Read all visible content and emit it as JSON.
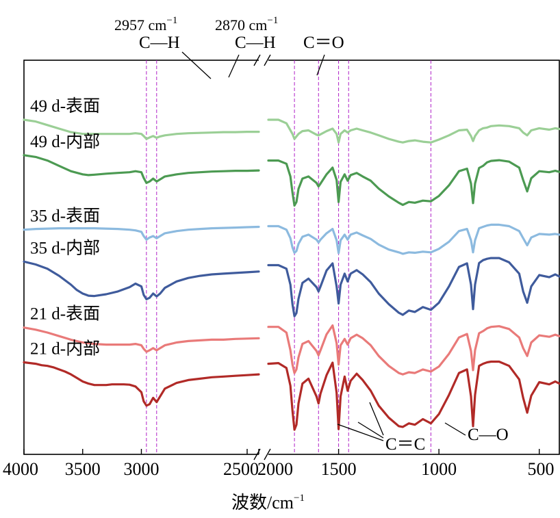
{
  "chart_data": {
    "type": "line",
    "title": "",
    "xlabel": "波数/cm",
    "xlabel_exp": "−1",
    "ylabel": "",
    "x_ticks": [
      "4000",
      "3500",
      "3000",
      "2500",
      "2000",
      "1500",
      "1000",
      "500"
    ],
    "x_segments": [
      [
        4000,
        2000
      ],
      [
        1850,
        400
      ]
    ],
    "grid": false,
    "series": [
      {
        "name": "49 d-表面",
        "color": "#9bcf96",
        "x": [
          4000,
          3900,
          3800,
          3700,
          3600,
          3500,
          3400,
          3300,
          3200,
          3100,
          3050,
          3000,
          2980,
          2957,
          2930,
          2900,
          2870,
          2840,
          2800,
          2700,
          2600,
          2500,
          2400,
          2300,
          2200,
          2100,
          2000,
          1850,
          1800,
          1760,
          1730,
          1720,
          1700,
          1680,
          1650,
          1610,
          1600,
          1590,
          1560,
          1530,
          1510,
          1500,
          1490,
          1470,
          1455,
          1440,
          1410,
          1380,
          1340,
          1300,
          1250,
          1200,
          1180,
          1150,
          1120,
          1080,
          1040,
          1000,
          950,
          900,
          860,
          840,
          830,
          820,
          800,
          780,
          760,
          740,
          700,
          650,
          600,
          580,
          560,
          540,
          500,
          450,
          420,
          400
        ],
        "y": [
          100,
          99.5,
          98.5,
          97.5,
          96.5,
          96,
          96,
          96,
          96,
          96,
          96.2,
          96,
          95.4,
          94.6,
          95,
          95.4,
          94.9,
          95.3,
          95.6,
          96,
          96.2,
          96.3,
          96.4,
          96.5,
          96.5,
          96.6,
          96.6,
          100,
          100,
          99,
          96,
          94.6,
          96,
          96.8,
          97,
          95.8,
          95.6,
          95.9,
          96.8,
          97.5,
          96,
          93.6,
          96,
          97,
          96.4,
          97,
          97.5,
          97,
          96.4,
          95.6,
          94.6,
          93.8,
          93.6,
          94,
          94.2,
          93.8,
          93.6,
          94.4,
          95.6,
          97,
          97.2,
          95.4,
          94,
          95.4,
          97,
          97.6,
          97.8,
          98.2,
          98.4,
          98.2,
          97.6,
          96.4,
          95.6,
          97,
          97.6,
          97.2,
          97.6,
          97.4
        ]
      },
      {
        "name": "49 d-内部",
        "color": "#4c9a52",
        "x": [
          4000,
          3900,
          3800,
          3700,
          3600,
          3500,
          3450,
          3400,
          3300,
          3200,
          3100,
          3050,
          3000,
          2980,
          2957,
          2930,
          2900,
          2870,
          2840,
          2800,
          2700,
          2600,
          2500,
          2400,
          2300,
          2200,
          2100,
          2000,
          1850,
          1800,
          1760,
          1740,
          1730,
          1720,
          1710,
          1700,
          1680,
          1650,
          1610,
          1600,
          1590,
          1560,
          1530,
          1510,
          1500,
          1490,
          1470,
          1455,
          1440,
          1410,
          1380,
          1340,
          1300,
          1250,
          1200,
          1180,
          1150,
          1120,
          1080,
          1040,
          1000,
          950,
          900,
          860,
          840,
          830,
          820,
          800,
          780,
          760,
          740,
          700,
          650,
          600,
          580,
          560,
          540,
          500,
          450,
          420,
          400
        ],
        "y": [
          90,
          89.5,
          88.5,
          87,
          85.5,
          84.6,
          84.4,
          84.5,
          84.8,
          85,
          85.2,
          85.5,
          85.2,
          83.6,
          82.2,
          82.6,
          83.4,
          82.6,
          83.2,
          84,
          84.6,
          85,
          85.2,
          85.4,
          85.5,
          85.6,
          85.6,
          85.7,
          88.5,
          88.5,
          87.6,
          84,
          79.5,
          75.8,
          76.8,
          80.5,
          83.4,
          84,
          82.2,
          81.2,
          82,
          84.6,
          86.5,
          83,
          76.8,
          82.5,
          84.6,
          82.8,
          84.4,
          85,
          84,
          82.8,
          80.6,
          78.4,
          76.6,
          76,
          76.8,
          76.6,
          77.2,
          77,
          78.5,
          81.5,
          85.5,
          86.2,
          82,
          76.5,
          82,
          86.4,
          87,
          88,
          88.4,
          88.6,
          88.2,
          86.5,
          83,
          79.8,
          83.5,
          85.5,
          85.2,
          85.6,
          85.3
        ]
      },
      {
        "name": "35 d-表面",
        "color": "#8cbadf",
        "x": [
          4000,
          3900,
          3800,
          3700,
          3600,
          3500,
          3400,
          3300,
          3200,
          3100,
          3050,
          3000,
          2980,
          2957,
          2930,
          2900,
          2870,
          2840,
          2800,
          2700,
          2600,
          2500,
          2400,
          2300,
          2200,
          2100,
          2000,
          1850,
          1800,
          1760,
          1740,
          1730,
          1720,
          1710,
          1700,
          1680,
          1650,
          1610,
          1600,
          1590,
          1560,
          1530,
          1510,
          1500,
          1490,
          1470,
          1455,
          1440,
          1410,
          1380,
          1340,
          1300,
          1250,
          1200,
          1180,
          1150,
          1120,
          1080,
          1040,
          1000,
          950,
          900,
          860,
          840,
          830,
          820,
          800,
          780,
          760,
          740,
          700,
          650,
          600,
          580,
          560,
          540,
          500,
          450,
          420,
          400
        ],
        "y": [
          69,
          69.2,
          69.3,
          69.4,
          69.4,
          69.4,
          69.4,
          69.3,
          69.2,
          69,
          68.8,
          68.4,
          67.2,
          66.2,
          66.8,
          67.2,
          66.6,
          67.2,
          68,
          68.6,
          69,
          69.2,
          69.4,
          69.5,
          69.6,
          69.7,
          69.8,
          70,
          70,
          69,
          66.6,
          64,
          62.5,
          63,
          65,
          67,
          67.6,
          66.2,
          65.4,
          66.2,
          68,
          69.2,
          66,
          62.4,
          66,
          67.6,
          66.2,
          67.6,
          68.2,
          67.4,
          66.4,
          64.8,
          63.4,
          62.6,
          62.2,
          62.6,
          62.5,
          62.8,
          62.6,
          63.6,
          65.6,
          68.6,
          69.2,
          66,
          62.6,
          66,
          69.4,
          69.8,
          70.2,
          70.4,
          70.4,
          70,
          68.6,
          66.6,
          64.6,
          66.8,
          67.8,
          67.6,
          67.8,
          67.6
        ]
      },
      {
        "name": "35 d-内部",
        "color": "#3f5b9c",
        "x": [
          4000,
          3900,
          3800,
          3700,
          3600,
          3550,
          3500,
          3450,
          3400,
          3300,
          3200,
          3100,
          3050,
          3000,
          2980,
          2957,
          2930,
          2900,
          2870,
          2840,
          2800,
          2700,
          2600,
          2500,
          2400,
          2300,
          2200,
          2100,
          2000,
          1850,
          1800,
          1760,
          1740,
          1730,
          1720,
          1710,
          1700,
          1680,
          1650,
          1610,
          1600,
          1590,
          1560,
          1530,
          1510,
          1500,
          1490,
          1470,
          1455,
          1440,
          1410,
          1380,
          1340,
          1300,
          1250,
          1200,
          1180,
          1150,
          1120,
          1080,
          1040,
          1000,
          950,
          900,
          860,
          840,
          830,
          820,
          800,
          780,
          760,
          740,
          700,
          650,
          600,
          580,
          560,
          540,
          500,
          450,
          420,
          400
        ],
        "y": [
          60,
          59.2,
          58,
          56,
          53.5,
          52,
          51,
          50.4,
          50.3,
          50.8,
          51.6,
          52.8,
          53.8,
          53,
          50.6,
          49.4,
          49.8,
          51,
          50.2,
          51,
          52.6,
          54.4,
          55.4,
          56,
          56.4,
          56.6,
          56.8,
          57,
          57.2,
          59,
          59,
          58,
          53.5,
          48,
          44.6,
          45.5,
          49.5,
          54,
          55.2,
          52.8,
          51.6,
          53,
          57.5,
          59.5,
          53,
          48.2,
          53.5,
          56.6,
          54.4,
          56.6,
          57.6,
          56.4,
          54.2,
          51,
          48,
          45.6,
          45,
          46.2,
          45.8,
          47.2,
          46.4,
          48.4,
          53,
          58.5,
          59.5,
          53.5,
          46.6,
          53.5,
          59.6,
          60.4,
          60.8,
          61,
          61,
          59.8,
          56.6,
          51.6,
          48.4,
          53,
          56.2,
          55.6,
          56.4,
          55.8
        ]
      },
      {
        "name": "21 d-表面",
        "color": "#e97a79",
        "x": [
          4000,
          3900,
          3800,
          3700,
          3600,
          3500,
          3400,
          3300,
          3200,
          3100,
          3050,
          3000,
          2980,
          2957,
          2930,
          2900,
          2870,
          2840,
          2800,
          2700,
          2600,
          2500,
          2400,
          2300,
          2200,
          2100,
          2000,
          1850,
          1800,
          1760,
          1740,
          1730,
          1720,
          1710,
          1700,
          1680,
          1650,
          1610,
          1600,
          1590,
          1560,
          1530,
          1510,
          1500,
          1490,
          1470,
          1455,
          1440,
          1410,
          1380,
          1340,
          1300,
          1250,
          1200,
          1180,
          1150,
          1120,
          1080,
          1040,
          1000,
          950,
          900,
          860,
          840,
          830,
          820,
          800,
          780,
          760,
          740,
          700,
          650,
          600,
          580,
          560,
          540,
          500,
          450,
          420,
          400
        ],
        "y": [
          41.4,
          40.8,
          40,
          39,
          38,
          37.2,
          36.8,
          36.6,
          36.6,
          36.6,
          36.8,
          36.4,
          35.4,
          34.6,
          35,
          35.6,
          35,
          35.6,
          36.4,
          37.2,
          37.6,
          37.8,
          38,
          38,
          38.2,
          38.3,
          38.4,
          41.6,
          41.6,
          40,
          35,
          31,
          28.6,
          29.6,
          33,
          36.8,
          37.6,
          34.8,
          33.6,
          35,
          39.5,
          42,
          37,
          31,
          36.4,
          38.2,
          36.6,
          38.4,
          39.4,
          38.4,
          36.4,
          33.4,
          30.6,
          28.6,
          28.2,
          28.8,
          28.6,
          29.6,
          29,
          30.4,
          34,
          38.6,
          39.6,
          34.8,
          29.4,
          35,
          39.8,
          40.4,
          41.2,
          41.6,
          41.8,
          41,
          38.6,
          35.6,
          33.4,
          37.2,
          39.2,
          38.8,
          39.4,
          39
        ]
      },
      {
        "name": "21 d-内部",
        "color": "#b12a27",
        "x": [
          4000,
          3900,
          3850,
          3800,
          3750,
          3700,
          3650,
          3600,
          3550,
          3500,
          3450,
          3400,
          3350,
          3300,
          3250,
          3200,
          3150,
          3100,
          3050,
          3000,
          2980,
          2957,
          2930,
          2900,
          2870,
          2840,
          2800,
          2700,
          2600,
          2500,
          2400,
          2300,
          2200,
          2100,
          2000,
          1850,
          1800,
          1760,
          1740,
          1730,
          1720,
          1710,
          1700,
          1680,
          1650,
          1610,
          1600,
          1590,
          1560,
          1530,
          1510,
          1500,
          1490,
          1470,
          1455,
          1440,
          1410,
          1380,
          1340,
          1300,
          1250,
          1200,
          1180,
          1150,
          1120,
          1080,
          1040,
          1000,
          950,
          900,
          860,
          840,
          830,
          820,
          800,
          780,
          760,
          740,
          700,
          650,
          600,
          580,
          560,
          540,
          500,
          450,
          420,
          400
        ],
        "y": [
          31.6,
          31.2,
          30.8,
          30.6,
          30.2,
          29.6,
          29,
          28.2,
          27.2,
          26.2,
          25.6,
          25.2,
          25.2,
          25.2,
          25.4,
          25.4,
          25.4,
          25.3,
          24.8,
          23.2,
          20.6,
          19.4,
          19.8,
          21.6,
          20.4,
          22,
          24.2,
          25.8,
          26.6,
          27,
          27.4,
          27.6,
          27.8,
          28,
          28.2,
          31.2,
          31.4,
          30,
          25,
          18,
          12.6,
          14,
          20,
          25.6,
          27,
          22,
          20,
          22.8,
          28,
          31.5,
          23,
          12.8,
          22,
          27.6,
          23.6,
          26.4,
          28.4,
          26.6,
          23.6,
          19.4,
          16,
          13.6,
          13.4,
          14.4,
          14,
          15.6,
          14.4,
          17,
          22.4,
          28.6,
          29.6,
          22,
          13.6,
          22.4,
          30.6,
          31.2,
          31.6,
          31.8,
          31.8,
          30.6,
          26.8,
          21.6,
          17.4,
          22.2,
          26,
          25.4,
          26.2,
          25.6
        ]
      }
    ],
    "marker_lines": [
      2957,
      2870,
      1720,
      1600,
      1500,
      1450,
      1040
    ],
    "annotations": [
      {
        "text": "2957 cm",
        "exp": "−1",
        "group": "C—H"
      },
      {
        "text": "2870 cm",
        "exp": "−1",
        "group": "C—H"
      },
      {
        "text": "C—H"
      },
      {
        "text": "C—H"
      },
      {
        "text": "C＝O"
      },
      {
        "text": "C＝C"
      },
      {
        "text": "C—O"
      }
    ]
  }
}
